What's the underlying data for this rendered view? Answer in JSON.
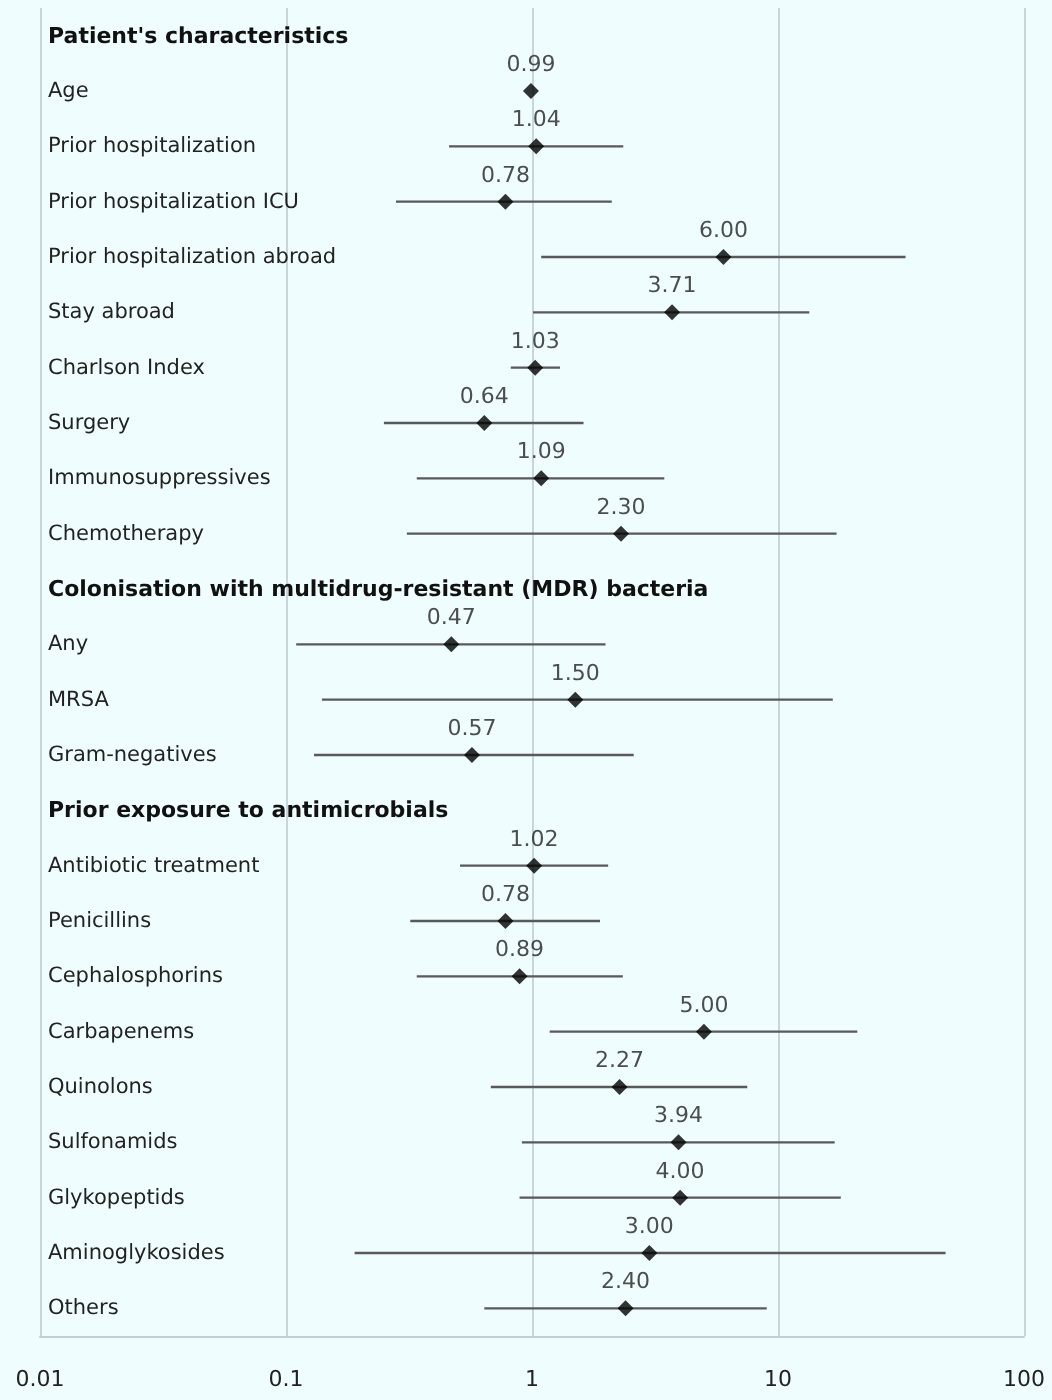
{
  "chart_data": {
    "type": "scatter",
    "categories": [
      "Patient's characteristics",
      "Age",
      "Prior hospitalization",
      "Prior hospitalization ICU",
      "Prior hospitalization abroad",
      "Stay abroad",
      "Charlson Index",
      "Surgery",
      "Immunosuppressives",
      "Chemotherapy",
      "Colonisation with multidrug-resistant (MDR) bacteria",
      "Any",
      "MRSA",
      "Gram-negatives",
      "Prior exposure to antimicrobials",
      "Antibiotic treatment",
      "Penicillins",
      "Cephalosphorins",
      "Carbapenems",
      "Quinolons",
      "Sulfonamids",
      "Glykopeptids",
      "Aminoglykosides",
      "Others"
    ],
    "values": [
      null,
      0.99,
      1.04,
      0.78,
      6.0,
      3.71,
      1.03,
      0.64,
      1.09,
      2.3,
      null,
      0.47,
      1.5,
      0.57,
      null,
      1.02,
      0.78,
      0.89,
      5.0,
      2.27,
      3.94,
      4.0,
      3.0,
      2.4
    ],
    "value_labels": [
      null,
      "0.99",
      "1.04",
      "0.78",
      "6.00",
      "3.71",
      "1.03",
      "0.64",
      "1.09",
      "2.30",
      null,
      "0.47",
      "1.50",
      "0.57",
      null,
      "1.02",
      "0.78",
      "0.89",
      "5.00",
      "2.27",
      "3.94",
      "4.00",
      "3.00",
      "2.40"
    ],
    "errors": [
      null,
      null,
      [
        0.46,
        2.35
      ],
      [
        0.28,
        2.11
      ],
      [
        1.09,
        33
      ],
      [
        1.01,
        13.4
      ],
      [
        0.82,
        1.3
      ],
      [
        0.25,
        1.62
      ],
      [
        0.34,
        3.45
      ],
      [
        0.31,
        17.3
      ],
      null,
      [
        0.11,
        1.99
      ],
      [
        0.14,
        16.7
      ],
      [
        0.13,
        2.59
      ],
      null,
      [
        0.51,
        2.04
      ],
      [
        0.32,
        1.89
      ],
      [
        0.34,
        2.34
      ],
      [
        1.18,
        21
      ],
      [
        0.68,
        7.5
      ],
      [
        0.91,
        17
      ],
      [
        0.89,
        18
      ],
      [
        0.19,
        48
      ],
      [
        0.64,
        9.0
      ]
    ],
    "color": "#000000",
    "orientation": "horizontal",
    "marker": "diamond",
    "log": "x",
    "xlim": [
      0.01,
      100
    ],
    "xticks": [
      0.01,
      0.1,
      1,
      10,
      100
    ],
    "grid": "x"
  }
}
